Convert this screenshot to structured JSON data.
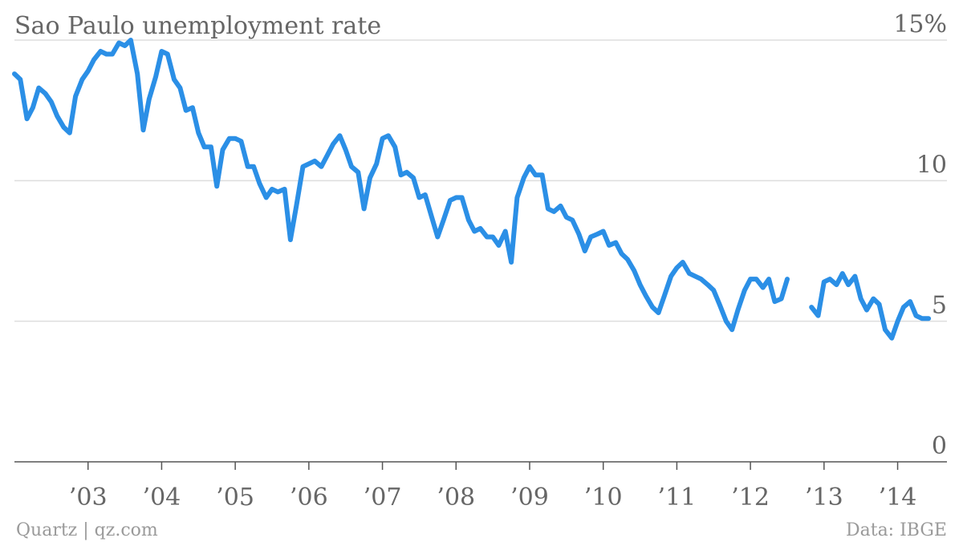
{
  "chart_data": {
    "type": "line",
    "title": "Sao Paulo unemployment rate",
    "ylim": [
      0,
      15
    ],
    "y_ticks": [
      {
        "value": 15,
        "label": "15%"
      },
      {
        "value": 10,
        "label": "10"
      },
      {
        "value": 5,
        "label": "5"
      },
      {
        "value": 0,
        "label": "0"
      }
    ],
    "xlim": [
      2002.0,
      2014.67
    ],
    "x_ticks": [
      {
        "value": 2003,
        "label": "’03"
      },
      {
        "value": 2004,
        "label": "’04"
      },
      {
        "value": 2005,
        "label": "’05"
      },
      {
        "value": 2006,
        "label": "’06"
      },
      {
        "value": 2007,
        "label": "’07"
      },
      {
        "value": 2008,
        "label": "’08"
      },
      {
        "value": 2009,
        "label": "’09"
      },
      {
        "value": 2010,
        "label": "’10"
      },
      {
        "value": 2011,
        "label": "’11"
      },
      {
        "value": 2012,
        "label": "’12"
      },
      {
        "value": 2013,
        "label": "’13"
      },
      {
        "value": 2014,
        "label": "’14"
      }
    ],
    "grid": true,
    "series": [
      {
        "color": "#2b8fe6",
        "segments": [
          [
            [
              2002.0,
              13.8
            ],
            [
              2002.08,
              13.6
            ],
            [
              2002.17,
              12.2
            ],
            [
              2002.25,
              12.6
            ],
            [
              2002.33,
              13.3
            ],
            [
              2002.42,
              13.1
            ],
            [
              2002.5,
              12.8
            ],
            [
              2002.58,
              12.3
            ],
            [
              2002.67,
              11.9
            ],
            [
              2002.75,
              11.7
            ],
            [
              2002.83,
              13.0
            ],
            [
              2002.92,
              13.6
            ],
            [
              2003.0,
              13.9
            ],
            [
              2003.08,
              14.3
            ],
            [
              2003.17,
              14.6
            ],
            [
              2003.25,
              14.5
            ],
            [
              2003.33,
              14.5
            ],
            [
              2003.42,
              14.9
            ],
            [
              2003.5,
              14.8
            ],
            [
              2003.58,
              15.0
            ],
            [
              2003.67,
              13.8
            ],
            [
              2003.75,
              11.8
            ],
            [
              2003.83,
              12.9
            ],
            [
              2003.92,
              13.7
            ],
            [
              2004.0,
              14.6
            ],
            [
              2004.08,
              14.5
            ],
            [
              2004.17,
              13.6
            ],
            [
              2004.25,
              13.3
            ],
            [
              2004.33,
              12.5
            ],
            [
              2004.42,
              12.6
            ],
            [
              2004.5,
              11.7
            ],
            [
              2004.58,
              11.2
            ],
            [
              2004.67,
              11.2
            ],
            [
              2004.75,
              9.8
            ],
            [
              2004.83,
              11.1
            ],
            [
              2004.92,
              11.5
            ],
            [
              2005.0,
              11.5
            ],
            [
              2005.08,
              11.4
            ],
            [
              2005.17,
              10.5
            ],
            [
              2005.25,
              10.5
            ],
            [
              2005.33,
              9.9
            ],
            [
              2005.42,
              9.4
            ],
            [
              2005.5,
              9.7
            ],
            [
              2005.58,
              9.6
            ],
            [
              2005.67,
              9.7
            ],
            [
              2005.75,
              7.9
            ],
            [
              2005.83,
              9.1
            ],
            [
              2005.92,
              10.5
            ],
            [
              2006.0,
              10.6
            ],
            [
              2006.08,
              10.7
            ],
            [
              2006.17,
              10.5
            ],
            [
              2006.25,
              10.9
            ],
            [
              2006.33,
              11.3
            ],
            [
              2006.42,
              11.6
            ],
            [
              2006.5,
              11.1
            ],
            [
              2006.58,
              10.5
            ],
            [
              2006.67,
              10.3
            ],
            [
              2006.75,
              9.0
            ],
            [
              2006.83,
              10.1
            ],
            [
              2006.92,
              10.6
            ],
            [
              2007.0,
              11.5
            ],
            [
              2007.08,
              11.6
            ],
            [
              2007.17,
              11.2
            ],
            [
              2007.25,
              10.2
            ],
            [
              2007.33,
              10.3
            ],
            [
              2007.42,
              10.1
            ],
            [
              2007.5,
              9.4
            ],
            [
              2007.58,
              9.5
            ],
            [
              2007.67,
              8.7
            ],
            [
              2007.75,
              8.0
            ],
            [
              2007.83,
              8.6
            ],
            [
              2007.92,
              9.3
            ],
            [
              2008.0,
              9.4
            ],
            [
              2008.08,
              9.4
            ],
            [
              2008.17,
              8.6
            ],
            [
              2008.25,
              8.2
            ],
            [
              2008.33,
              8.3
            ],
            [
              2008.42,
              8.0
            ],
            [
              2008.5,
              8.0
            ],
            [
              2008.58,
              7.7
            ],
            [
              2008.67,
              8.2
            ],
            [
              2008.75,
              7.1
            ],
            [
              2008.83,
              9.4
            ],
            [
              2008.92,
              10.1
            ],
            [
              2009.0,
              10.5
            ],
            [
              2009.08,
              10.2
            ],
            [
              2009.17,
              10.2
            ],
            [
              2009.25,
              9.0
            ],
            [
              2009.33,
              8.9
            ],
            [
              2009.42,
              9.1
            ],
            [
              2009.5,
              8.7
            ],
            [
              2009.58,
              8.6
            ],
            [
              2009.67,
              8.1
            ],
            [
              2009.75,
              7.5
            ],
            [
              2009.83,
              8.0
            ],
            [
              2009.92,
              8.1
            ],
            [
              2010.0,
              8.2
            ],
            [
              2010.08,
              7.7
            ],
            [
              2010.17,
              7.8
            ],
            [
              2010.25,
              7.4
            ],
            [
              2010.33,
              7.2
            ],
            [
              2010.42,
              6.8
            ],
            [
              2010.5,
              6.3
            ],
            [
              2010.58,
              5.9
            ],
            [
              2010.67,
              5.5
            ],
            [
              2010.75,
              5.3
            ],
            [
              2010.83,
              5.9
            ],
            [
              2010.92,
              6.6
            ],
            [
              2011.0,
              6.9
            ],
            [
              2011.08,
              7.1
            ],
            [
              2011.17,
              6.7
            ],
            [
              2011.25,
              6.6
            ],
            [
              2011.33,
              6.5
            ],
            [
              2011.42,
              6.3
            ],
            [
              2011.5,
              6.1
            ],
            [
              2011.58,
              5.6
            ],
            [
              2011.67,
              5.0
            ],
            [
              2011.75,
              4.7
            ],
            [
              2011.83,
              5.4
            ],
            [
              2011.92,
              6.1
            ],
            [
              2012.0,
              6.5
            ],
            [
              2012.08,
              6.5
            ],
            [
              2012.17,
              6.2
            ],
            [
              2012.25,
              6.5
            ],
            [
              2012.33,
              5.7
            ],
            [
              2012.42,
              5.8
            ],
            [
              2012.5,
              6.5
            ]
          ],
          [
            [
              2012.83,
              5.5
            ],
            [
              2012.92,
              5.2
            ],
            [
              2013.0,
              6.4
            ],
            [
              2013.08,
              6.5
            ],
            [
              2013.17,
              6.3
            ],
            [
              2013.25,
              6.7
            ],
            [
              2013.33,
              6.3
            ],
            [
              2013.42,
              6.6
            ],
            [
              2013.5,
              5.8
            ],
            [
              2013.58,
              5.4
            ],
            [
              2013.67,
              5.8
            ],
            [
              2013.75,
              5.6
            ],
            [
              2013.83,
              4.7
            ],
            [
              2013.92,
              4.4
            ],
            [
              2014.0,
              5.0
            ],
            [
              2014.08,
              5.5
            ],
            [
              2014.17,
              5.7
            ],
            [
              2014.25,
              5.2
            ],
            [
              2014.33,
              5.1
            ],
            [
              2014.42,
              5.1
            ]
          ]
        ]
      }
    ]
  },
  "footer": {
    "left": "Quartz | qz.com",
    "right": "Data: IBGE"
  }
}
